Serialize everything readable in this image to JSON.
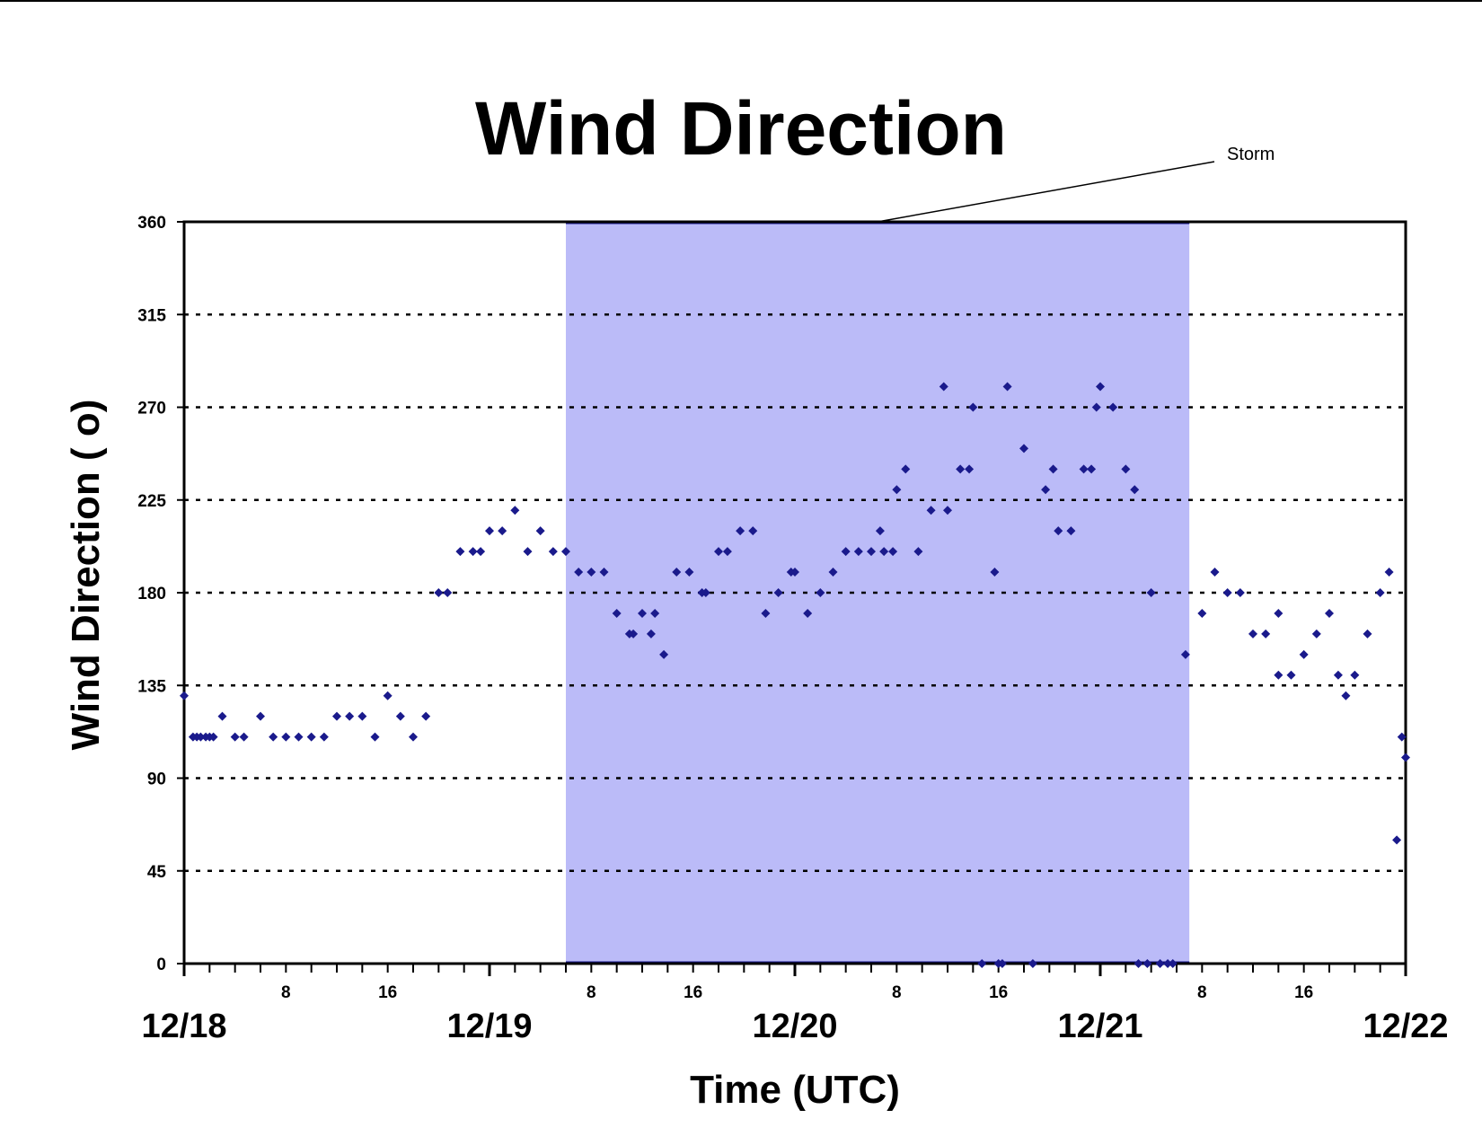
{
  "chart_data": {
    "type": "scatter",
    "title": "Wind Direction",
    "xlabel": "Time (UTC)",
    "ylabel": "Wind Direction ( o)",
    "ylim": [
      0,
      360
    ],
    "xlim_hours": [
      0,
      96
    ],
    "yticks": [
      0,
      45,
      90,
      135,
      180,
      225,
      270,
      315,
      360
    ],
    "day_ticks": [
      {
        "hour": 0,
        "label": "12/18"
      },
      {
        "hour": 24,
        "label": "12/19"
      },
      {
        "hour": 48,
        "label": "12/20"
      },
      {
        "hour": 72,
        "label": "12/21"
      },
      {
        "hour": 96,
        "label": "12/22"
      }
    ],
    "hour_ticks": [
      {
        "hour": 8,
        "label": "8"
      },
      {
        "hour": 16,
        "label": "16"
      },
      {
        "hour": 32,
        "label": "8"
      },
      {
        "hour": 40,
        "label": "16"
      },
      {
        "hour": 56,
        "label": "8"
      },
      {
        "hour": 64,
        "label": "16"
      },
      {
        "hour": 80,
        "label": "8"
      },
      {
        "hour": 88,
        "label": "16"
      }
    ],
    "grid": "horizontal dotted",
    "marker_color": "#1a1a8c",
    "storm_band": {
      "label": "Storm",
      "start_hour": 30,
      "end_hour": 79,
      "color": "#bbbbf8"
    },
    "series": [
      {
        "x": [
          0,
          0.7,
          1,
          1.3,
          1.7,
          2,
          2.3,
          3,
          4,
          4.7,
          6,
          7,
          8,
          9,
          10,
          11,
          12,
          13,
          14,
          15,
          16,
          17,
          18,
          19,
          20,
          20.7,
          21.7,
          22.7,
          23.3,
          24,
          25,
          26,
          27,
          28,
          29,
          30,
          31,
          32,
          33,
          34,
          35,
          35.3,
          36,
          36.7,
          37,
          37.7,
          38.7,
          39.7,
          40.7,
          41,
          42,
          42.7,
          43.7,
          44.7,
          45.7,
          46.7,
          47.7,
          48,
          49,
          50,
          51,
          52,
          53,
          54,
          54.7,
          55,
          55.7,
          56,
          56.7,
          57.7,
          58.7,
          59.7,
          60,
          61,
          61.7,
          62,
          62.7,
          63.7,
          64,
          64.3,
          64.7,
          66,
          66.7,
          67.7,
          68.3,
          68.7,
          69.7,
          70.7,
          71.3,
          71.7,
          72,
          73,
          74,
          74.7,
          75,
          75.7,
          76,
          76.7,
          77.3,
          77.7,
          78.7,
          80,
          81,
          82,
          83,
          84,
          85,
          86,
          86,
          87,
          88,
          89,
          90,
          90.7,
          91.3,
          92,
          93,
          94,
          94.7,
          95.3,
          95.7,
          96
        ],
        "y": [
          130,
          110,
          110,
          110,
          110,
          110,
          110,
          120,
          110,
          110,
          120,
          110,
          110,
          110,
          110,
          110,
          120,
          120,
          120,
          110,
          130,
          120,
          110,
          120,
          180,
          180,
          200,
          200,
          200,
          210,
          210,
          220,
          200,
          210,
          200,
          200,
          190,
          190,
          190,
          170,
          160,
          160,
          170,
          160,
          170,
          150,
          190,
          190,
          180,
          180,
          200,
          200,
          210,
          210,
          170,
          180,
          190,
          190,
          170,
          180,
          190,
          200,
          200,
          200,
          210,
          200,
          200,
          230,
          240,
          200,
          220,
          280,
          220,
          240,
          240,
          270,
          0,
          190,
          0,
          0,
          280,
          250,
          0,
          230,
          240,
          210,
          210,
          240,
          240,
          270,
          280,
          270,
          240,
          230,
          0,
          0,
          180,
          0,
          0,
          0,
          150,
          170,
          190,
          180,
          180,
          160,
          160,
          140,
          170,
          140,
          150,
          160,
          170,
          140,
          130,
          140,
          160,
          180,
          190,
          60,
          110,
          100
        ]
      }
    ]
  }
}
